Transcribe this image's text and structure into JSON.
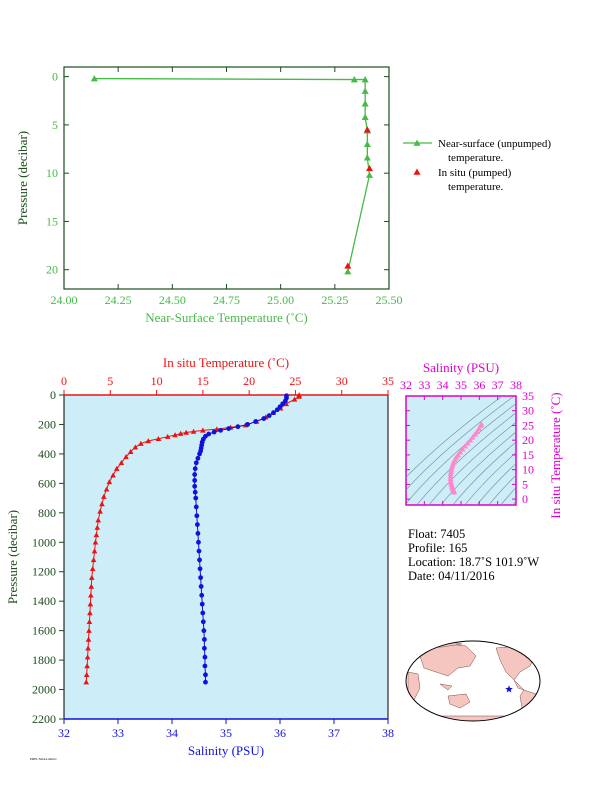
{
  "chart_data": [
    {
      "type": "line",
      "xlabel": "Near-Surface Temperature (˚C)",
      "ylabel": "Pressure (decibar)",
      "xlim": [
        24.0,
        25.5
      ],
      "ylim": [
        22,
        -1
      ],
      "x_ticks": [
        "24.00",
        "24.25",
        "24.50",
        "24.75",
        "25.00",
        "25.25",
        "25.50"
      ],
      "y_ticks": [
        "0",
        "5",
        "10",
        "15",
        "20"
      ],
      "series": [
        {
          "name": "Near-surface (unpumped) temperature.",
          "color": "#44bb44",
          "marker": "triangle",
          "points": [
            [
              24.14,
              0.2
            ],
            [
              25.34,
              0.3
            ],
            [
              25.39,
              0.3
            ],
            [
              25.39,
              1.5
            ],
            [
              25.39,
              2.8
            ],
            [
              25.39,
              4.2
            ],
            [
              25.4,
              5.6
            ],
            [
              25.4,
              7.0
            ],
            [
              25.4,
              8.4
            ],
            [
              25.41,
              10.2
            ],
            [
              25.31,
              20.2
            ]
          ]
        },
        {
          "name": "In situ (pumped) temperature.",
          "color": "#ee1111",
          "marker": "triangle",
          "points": [
            [
              25.4,
              5.5
            ],
            [
              25.41,
              9.5
            ],
            [
              25.31,
              19.6
            ]
          ]
        }
      ],
      "legend": [
        "Near-surface (unpumped)",
        "temperature.",
        "In situ (pumped)",
        "temperature."
      ]
    },
    {
      "type": "line",
      "title_top": "In situ Temperature (˚C)",
      "xlabel": "Salinity (PSU)",
      "ylabel": "Pressure (decibar)",
      "temp_lim": [
        0,
        35
      ],
      "sal_lim": [
        32,
        38
      ],
      "ylim": [
        2200,
        0
      ],
      "temp_ticks": [
        "0",
        "5",
        "10",
        "15",
        "20",
        "25",
        "30",
        "35"
      ],
      "sal_ticks": [
        "32",
        "33",
        "34",
        "35",
        "36",
        "37",
        "38"
      ],
      "y_ticks": [
        "0",
        "200",
        "400",
        "600",
        "800",
        "1000",
        "1200",
        "1400",
        "1600",
        "1800",
        "2000",
        "2200"
      ],
      "temperature": [
        [
          25.4,
          0
        ],
        [
          25.4,
          10
        ],
        [
          24.9,
          30
        ],
        [
          24.0,
          60
        ],
        [
          23.4,
          90
        ],
        [
          22.6,
          120
        ],
        [
          21.8,
          150
        ],
        [
          20.8,
          180
        ],
        [
          19.6,
          205
        ],
        [
          18.0,
          220
        ],
        [
          16.5,
          232
        ],
        [
          15.0,
          240
        ],
        [
          14.0,
          248
        ],
        [
          13.2,
          255
        ],
        [
          12.6,
          262
        ],
        [
          12.0,
          272
        ],
        [
          11.2,
          283
        ],
        [
          10.2,
          297
        ],
        [
          9.1,
          312
        ],
        [
          8.3,
          330
        ],
        [
          7.7,
          355
        ],
        [
          7.2,
          385
        ],
        [
          6.7,
          420
        ],
        [
          6.2,
          460
        ],
        [
          5.7,
          500
        ],
        [
          5.3,
          545
        ],
        [
          4.9,
          590
        ],
        [
          4.6,
          640
        ],
        [
          4.3,
          690
        ],
        [
          4.1,
          740
        ],
        [
          3.9,
          790
        ],
        [
          3.7,
          850
        ],
        [
          3.6,
          900
        ],
        [
          3.5,
          950
        ],
        [
          3.4,
          1000
        ],
        [
          3.3,
          1060
        ],
        [
          3.2,
          1120
        ],
        [
          3.1,
          1180
        ],
        [
          3.0,
          1240
        ],
        [
          2.95,
          1300
        ],
        [
          2.9,
          1360
        ],
        [
          2.85,
          1420
        ],
        [
          2.8,
          1480
        ],
        [
          2.75,
          1540
        ],
        [
          2.7,
          1600
        ],
        [
          2.65,
          1660
        ],
        [
          2.6,
          1720
        ],
        [
          2.55,
          1780
        ],
        [
          2.5,
          1840
        ],
        [
          2.45,
          1900
        ],
        [
          2.4,
          1950
        ]
      ],
      "salinity": [
        [
          36.12,
          5
        ],
        [
          36.12,
          20
        ],
        [
          36.1,
          40
        ],
        [
          36.05,
          60
        ],
        [
          36.0,
          80
        ],
        [
          35.95,
          100
        ],
        [
          35.88,
          120
        ],
        [
          35.8,
          140
        ],
        [
          35.7,
          160
        ],
        [
          35.55,
          180
        ],
        [
          35.4,
          200
        ],
        [
          35.22,
          215
        ],
        [
          35.05,
          228
        ],
        [
          34.9,
          240
        ],
        [
          34.78,
          252
        ],
        [
          34.68,
          265
        ],
        [
          34.62,
          280
        ],
        [
          34.58,
          300
        ],
        [
          34.56,
          320
        ],
        [
          34.55,
          340
        ],
        [
          34.54,
          360
        ],
        [
          34.53,
          380
        ],
        [
          34.51,
          400
        ],
        [
          34.48,
          430
        ],
        [
          34.45,
          460
        ],
        [
          34.43,
          500
        ],
        [
          34.42,
          540
        ],
        [
          34.42,
          580
        ],
        [
          34.42,
          620
        ],
        [
          34.43,
          660
        ],
        [
          34.44,
          700
        ],
        [
          34.45,
          760
        ],
        [
          34.46,
          820
        ],
        [
          34.47,
          880
        ],
        [
          34.48,
          940
        ],
        [
          34.49,
          1000
        ],
        [
          34.5,
          1060
        ],
        [
          34.51,
          1120
        ],
        [
          34.52,
          1180
        ],
        [
          34.53,
          1240
        ],
        [
          34.54,
          1300
        ],
        [
          34.55,
          1360
        ],
        [
          34.56,
          1420
        ],
        [
          34.57,
          1480
        ],
        [
          34.58,
          1540
        ],
        [
          34.59,
          1600
        ],
        [
          34.6,
          1660
        ],
        [
          34.6,
          1720
        ],
        [
          34.61,
          1780
        ],
        [
          34.61,
          1840
        ],
        [
          34.62,
          1900
        ],
        [
          34.62,
          1950
        ]
      ]
    },
    {
      "type": "scatter",
      "title": "Salinity (PSU)",
      "ylabel": "In situ Temperature (˚C)",
      "xlim": [
        32,
        38
      ],
      "ylim": [
        -2,
        35
      ],
      "x_ticks": [
        "32",
        "33",
        "34",
        "35",
        "36",
        "37",
        "38"
      ],
      "y_ticks": [
        "0",
        "5",
        "10",
        "15",
        "20",
        "25",
        "30",
        "35"
      ],
      "points": [
        [
          34.62,
          2.4
        ],
        [
          34.61,
          2.7
        ],
        [
          34.59,
          3.0
        ],
        [
          34.57,
          3.4
        ],
        [
          34.54,
          3.8
        ],
        [
          34.51,
          4.3
        ],
        [
          34.48,
          4.9
        ],
        [
          34.46,
          5.5
        ],
        [
          34.44,
          6.2
        ],
        [
          34.43,
          7.0
        ],
        [
          34.43,
          7.8
        ],
        [
          34.44,
          8.6
        ],
        [
          34.46,
          9.4
        ],
        [
          34.48,
          10.2
        ],
        [
          34.51,
          11.0
        ],
        [
          34.55,
          11.8
        ],
        [
          34.6,
          12.6
        ],
        [
          34.66,
          13.4
        ],
        [
          34.74,
          14.2
        ],
        [
          34.84,
          15.0
        ],
        [
          34.96,
          16.0
        ],
        [
          35.08,
          17.0
        ],
        [
          35.22,
          18.0
        ],
        [
          35.36,
          19.0
        ],
        [
          35.5,
          20.0
        ],
        [
          35.63,
          21.0
        ],
        [
          35.76,
          22.0
        ],
        [
          35.88,
          23.0
        ],
        [
          35.98,
          24.0
        ],
        [
          36.06,
          25.0
        ],
        [
          36.12,
          25.4
        ]
      ]
    }
  ],
  "float_info": {
    "float": "Float:  7405",
    "profile": "Profile:  165",
    "location": "Location:  18.7˚S  101.9˚W",
    "date": "Date:  04/11/2016"
  },
  "map": {
    "marker_lon": -101.9,
    "marker_lat": -18.7
  },
  "colors": {
    "green": "#44bb44",
    "red": "#ee1111",
    "blue": "#1111dd",
    "magenta": "#dd00cc",
    "pink": "#ff88cc",
    "plot_bg": "#cdeef8",
    "dark_axis": "#1a4d1a",
    "land": "#f5c6c0",
    "ocean": "#ffffff"
  },
  "footer": "PMEL/NOAA ARGO"
}
